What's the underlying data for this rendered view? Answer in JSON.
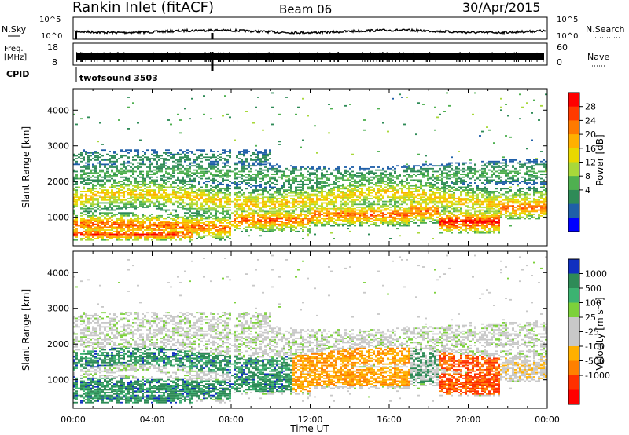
{
  "header": {
    "station": "Rankin Inlet (fitACF)",
    "beam": "Beam 06",
    "date": "30/Apr/2015"
  },
  "noise_panel": {
    "left_label": "N.Sky",
    "right_label": "N.Search",
    "left_ticks": [
      "10^5",
      "10^0"
    ],
    "right_ticks": [
      "10^5",
      "10^0"
    ]
  },
  "freq_panel": {
    "left_label_line1": "Freq.",
    "left_label_line2": "[MHz]",
    "left_ticks": [
      "18",
      "8"
    ],
    "right_label": "Nave",
    "right_ticks": [
      "60",
      "0"
    ]
  },
  "cpid": {
    "label": "CPID",
    "program": "twofsound 3503"
  },
  "time_axis": {
    "label": "Time UT",
    "ticks": [
      "00:00",
      "04:00",
      "08:00",
      "12:00",
      "16:00",
      "20:00",
      "00:00"
    ]
  },
  "chart_data": [
    {
      "type": "heatmap",
      "name": "power",
      "ylabel": "Slant Range [km]",
      "yticks": [
        1000,
        2000,
        3000,
        4000
      ],
      "ylim": [
        200,
        4600
      ],
      "xlim_hours": [
        0,
        24
      ],
      "colorbar": {
        "label": "Power [dB]",
        "ticks": [
          "28",
          "24",
          "20",
          "16",
          "12",
          "8",
          "4"
        ],
        "colors": [
          "#ff0000",
          "#ff3a00",
          "#ff7a00",
          "#ffb000",
          "#e8d800",
          "#a8d83a",
          "#4fb050",
          "#2e8b57",
          "#1f5fa8",
          "#0000ff"
        ]
      }
    },
    {
      "type": "heatmap",
      "name": "velocity",
      "ylabel": "Slant Range [km]",
      "yticks": [
        1000,
        2000,
        3000,
        4000
      ],
      "ylim": [
        200,
        4600
      ],
      "xlim_hours": [
        0,
        24
      ],
      "colorbar": {
        "label": "Velocity [m s⁻¹]",
        "ticks": [
          "1000",
          "500",
          "100",
          "25",
          "-25",
          "-100",
          "-500",
          "-1000"
        ],
        "colors": [
          "#1030c0",
          "#2e8b57",
          "#3cb371",
          "#7cd13a",
          "#c8c8c8",
          "#c8c8c8",
          "#ffb000",
          "#ff8000",
          "#ff3000",
          "#ff0000"
        ]
      }
    }
  ]
}
